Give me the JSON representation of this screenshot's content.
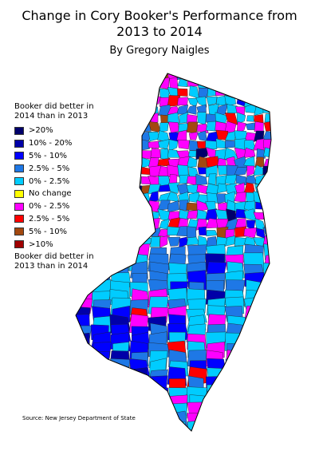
{
  "header": {
    "title": "Change in Cory Booker's Performance from 2013 to 2014",
    "subtitle": "By Gregory Naigles"
  },
  "legend": {
    "heading": "Booker did better in 2014 than in 2013",
    "items": [
      {
        "label": ">20%",
        "color": "#00006b"
      },
      {
        "label": "10% - 20%",
        "color": "#0000a8"
      },
      {
        "label": "5% - 10%",
        "color": "#0000ff"
      },
      {
        "label": "2.5% - 5%",
        "color": "#1e78e6"
      },
      {
        "label": "0% - 2.5%",
        "color": "#00ccff"
      },
      {
        "label": "No change",
        "color": "#ffff00"
      },
      {
        "label": "0% - 2.5%",
        "color": "#ff00ff"
      },
      {
        "label": "2.5% - 5%",
        "color": "#ff0000"
      },
      {
        "label": "5% - 10%",
        "color": "#a3480f"
      },
      {
        "label": ">10%",
        "color": "#a00000"
      }
    ],
    "footer": "Booker did better in 2013 than in 2014"
  },
  "source": "Source: New Jersey Department of State"
}
